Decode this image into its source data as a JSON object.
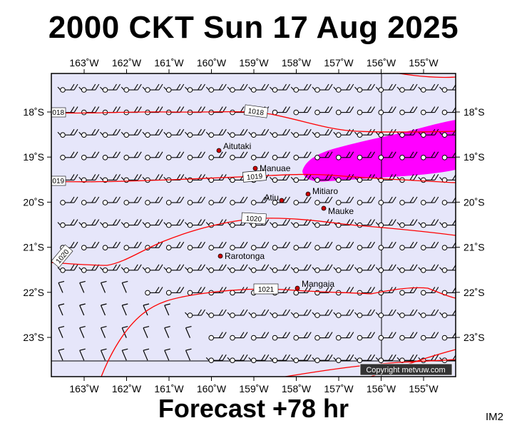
{
  "title": "2000 CKT Sun 17 Aug 2025",
  "forecast_label": "Forecast +78 hr",
  "product_code": "IM2",
  "copyright": "Copyright metvuw.com",
  "colors": {
    "background": "#e6e6fa",
    "isobar": "#ff0000",
    "rain": "#ff00ff",
    "town": "#cc0000"
  },
  "lon_ticks": [
    "163˚W",
    "162˚W",
    "161˚W",
    "160˚W",
    "159˚W",
    "158˚W",
    "157˚W",
    "156˚W",
    "155˚W"
  ],
  "lat_ticks": [
    "18˚S",
    "19˚S",
    "20˚S",
    "21˚S",
    "22˚S",
    "23˚S"
  ],
  "towns": [
    {
      "name": "Aitutaki",
      "lon": -159.78,
      "lat": -18.86
    },
    {
      "name": "Manuae",
      "lon": -158.96,
      "lat": -19.26
    },
    {
      "name": "Mitiaro",
      "lon": -157.71,
      "lat": -19.86
    },
    {
      "name": "Atiu",
      "lon": -158.12,
      "lat": -19.99
    },
    {
      "name": "Mauke",
      "lon": -157.34,
      "lat": -20.16
    },
    {
      "name": "Rarotonga",
      "lon": -159.78,
      "lat": -21.23
    },
    {
      "name": "Mangaia",
      "lon": -157.92,
      "lat": -21.92
    }
  ],
  "isobars": [
    {
      "value": "1018",
      "label_left": "1018",
      "label_right": "1018"
    },
    {
      "value": "1019",
      "label_left": "1019",
      "label_right": "1019"
    },
    {
      "value": "1020",
      "label_left": "1020",
      "label_right": "1020"
    },
    {
      "value": "1021",
      "label_left": "1021"
    }
  ]
}
